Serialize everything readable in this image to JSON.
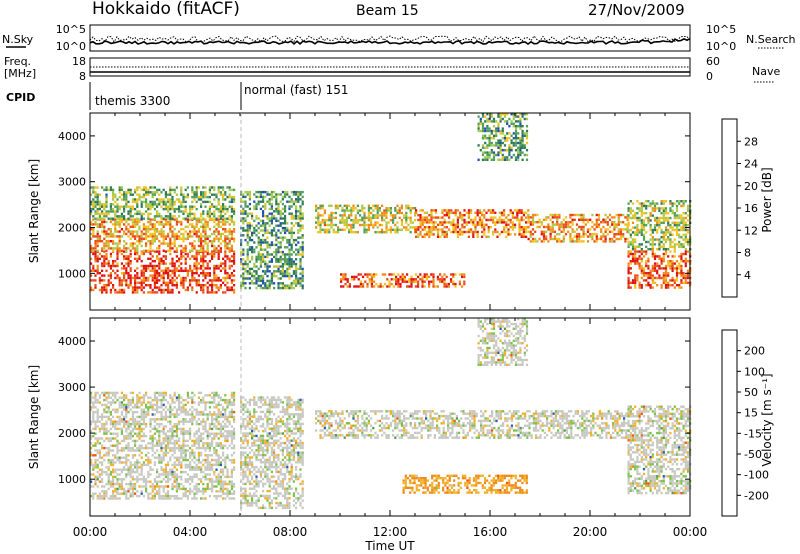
{
  "header": {
    "station": "Hokkaido (fitACF)",
    "beam": "Beam 15",
    "date": "27/Nov/2009"
  },
  "params": {
    "nsky_label": "N.Sky",
    "nsearch_label": "N.Search",
    "freq_label_1": "Freq.",
    "freq_label_2": "[MHz]",
    "nave_label": "Nave",
    "cpid_label": "CPID",
    "nsky_ticks": [
      "10^5",
      "10^0"
    ],
    "nsearch_ticks": [
      "10^5",
      "10^0"
    ],
    "freq_ticks": [
      "18",
      "8"
    ],
    "nave_ticks": [
      "60",
      "0"
    ]
  },
  "cpid": [
    {
      "label": "themis 3300",
      "start_hour": 0
    },
    {
      "label": "normal (fast) 151",
      "start_hour": 6
    }
  ],
  "colors": {
    "power_scale": [
      "#0a14e6",
      "#1f4fb0",
      "#2f7a55",
      "#4f9f5a",
      "#a8c94a",
      "#f2c21f",
      "#f08a1a",
      "#ee4a18",
      "#e01010"
    ],
    "velocity_scale": [
      "#e01010",
      "#ee5515",
      "#f08a1a",
      "#f2b12a",
      "#c8c8c2",
      "#7cc24a",
      "#4e9b48",
      "#2a5aa8",
      "#1b2fc8"
    ]
  },
  "chart_data": [
    {
      "type": "heatmap",
      "name": "power",
      "ylabel": "Slant Range [km]",
      "xlabel": "",
      "x_range_hours": [
        0,
        24
      ],
      "ylim": [
        200,
        4500
      ],
      "yticks": [
        "1000",
        "2000",
        "3000",
        "4000"
      ],
      "colorbar_label": "Power [dB]",
      "colorbar_ticks": [
        "28",
        "24",
        "20",
        "16",
        "12",
        "8",
        "4"
      ],
      "colorbar_range": [
        0,
        32
      ],
      "bands": [
        {
          "t0": 0.0,
          "t1": 5.8,
          "r0": 600,
          "r1": 1500,
          "value": 28
        },
        {
          "t0": 0.0,
          "t1": 5.8,
          "r0": 1500,
          "r1": 2200,
          "value": 22
        },
        {
          "t0": 0.0,
          "t1": 5.8,
          "r0": 2200,
          "r1": 2900,
          "value": 14
        },
        {
          "t0": 6.0,
          "t1": 8.5,
          "r0": 700,
          "r1": 2800,
          "value": 12
        },
        {
          "t0": 9.0,
          "t1": 13.0,
          "r0": 1900,
          "r1": 2500,
          "value": 18
        },
        {
          "t0": 10.0,
          "t1": 15.0,
          "r0": 700,
          "r1": 1000,
          "value": 26
        },
        {
          "t0": 13.0,
          "t1": 17.5,
          "r0": 1800,
          "r1": 2400,
          "value": 24
        },
        {
          "t0": 15.5,
          "t1": 17.5,
          "r0": 3500,
          "r1": 4500,
          "value": 12
        },
        {
          "t0": 17.5,
          "t1": 21.5,
          "r0": 1700,
          "r1": 2300,
          "value": 22
        },
        {
          "t0": 21.5,
          "t1": 24.0,
          "r0": 700,
          "r1": 1500,
          "value": 26
        },
        {
          "t0": 21.5,
          "t1": 24.0,
          "r0": 1500,
          "r1": 2600,
          "value": 16
        }
      ]
    },
    {
      "type": "heatmap",
      "name": "velocity",
      "ylabel": "Slant Range [km]",
      "xlabel": "Time UT",
      "x_range_hours": [
        0,
        24
      ],
      "x_ticks": [
        "00:00",
        "04:00",
        "08:00",
        "12:00",
        "16:00",
        "20:00",
        "00:00"
      ],
      "ylim": [
        200,
        4500
      ],
      "yticks": [
        "1000",
        "2000",
        "3000",
        "4000"
      ],
      "colorbar_label": "Velocity [m s⁻¹]",
      "colorbar_ticks": [
        "200",
        "100",
        "50",
        "15",
        "-15",
        "-50",
        "-100",
        "-200"
      ],
      "bands": [
        {
          "t0": 0.0,
          "t1": 5.8,
          "r0": 600,
          "r1": 2900,
          "value": 0
        },
        {
          "t0": 6.0,
          "t1": 8.5,
          "r0": 400,
          "r1": 2800,
          "value": 0
        },
        {
          "t0": 9.0,
          "t1": 21.5,
          "r0": 1900,
          "r1": 2500,
          "value": 0
        },
        {
          "t0": 12.5,
          "t1": 17.5,
          "r0": 700,
          "r1": 1100,
          "value": -50
        },
        {
          "t0": 15.5,
          "t1": 17.5,
          "r0": 3500,
          "r1": 4500,
          "value": 0
        },
        {
          "t0": 21.5,
          "t1": 24.0,
          "r0": 700,
          "r1": 2600,
          "value": 0
        }
      ]
    }
  ]
}
